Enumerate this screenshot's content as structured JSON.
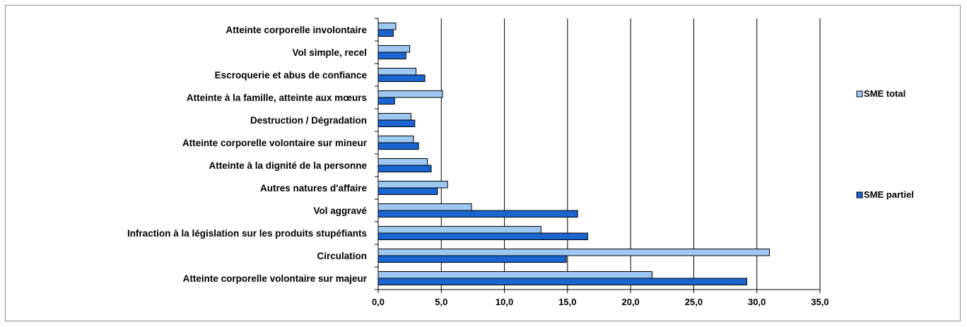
{
  "chart_data": {
    "type": "bar",
    "orientation": "horizontal",
    "categories": [
      "Atteinte corporelle involontaire",
      "Vol simple, recel",
      "Escroquerie et abus de confiance",
      "Atteinte à la famille, atteinte aux mœurs",
      "Destruction / Dégradation",
      "Atteinte corporelle volontaire sur mineur",
      "Atteinte à la dignité de la personne",
      "Autres natures d'affaire",
      "Vol aggravé",
      "Infraction à la législation sur les produits stupéfiants",
      "Circulation",
      "Atteinte corporelle volontaire sur majeur"
    ],
    "series": [
      {
        "name": "SME total",
        "color": "#9dc8f2",
        "values": [
          1.4,
          2.5,
          3.0,
          5.1,
          2.6,
          2.8,
          3.9,
          5.5,
          7.4,
          12.9,
          31.0,
          21.7
        ]
      },
      {
        "name": "SME partiel",
        "color": "#1a65cf",
        "values": [
          1.2,
          2.2,
          3.7,
          1.3,
          2.9,
          3.2,
          4.2,
          4.7,
          15.8,
          16.6,
          14.9,
          29.2
        ]
      }
    ],
    "xlim": [
      0,
      35
    ],
    "xticks": [
      "0,0",
      "5,0",
      "10,0",
      "15,0",
      "20,0",
      "25,0",
      "30,0",
      "35,0"
    ],
    "grid": "vertical",
    "legend": "right"
  }
}
